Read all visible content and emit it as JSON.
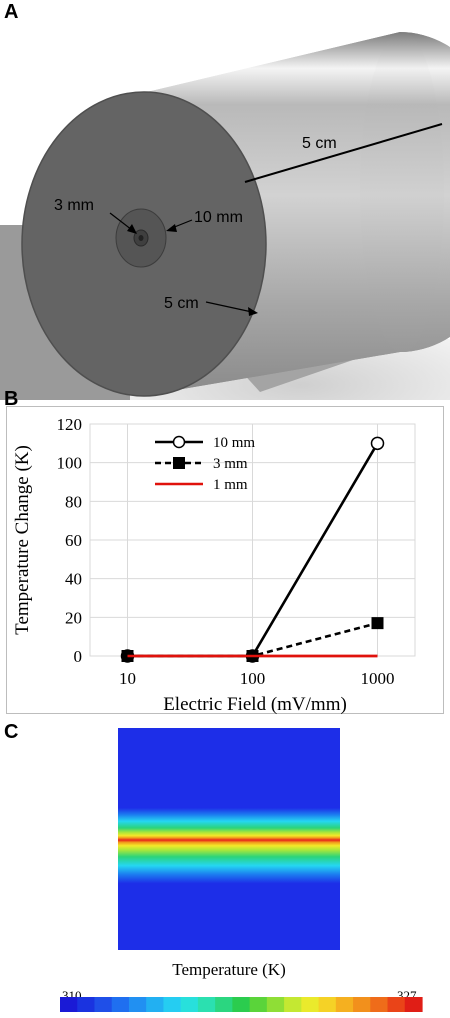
{
  "panels": {
    "a": {
      "letter": "A",
      "label_length": "5 cm",
      "label_diameter": "5 cm",
      "label_inner": "3 mm",
      "label_outer": "10 mm"
    },
    "b": {
      "letter": "B"
    },
    "c": {
      "letter": "C",
      "colorbar_title": "Temperature (K)",
      "colorbar_min": "310",
      "colorbar_max": "327"
    }
  },
  "chart_data": [
    {
      "type": "line",
      "xlabel": "Electric Field (mV/mm)",
      "ylabel": "Temperature Change (K)",
      "x_scale": "log",
      "x": [
        10,
        100,
        1000
      ],
      "x_ticks": [
        "10",
        "100",
        "1000"
      ],
      "ylim": [
        0,
        120
      ],
      "y_ticks": [
        0,
        20,
        40,
        60,
        80,
        100,
        120
      ],
      "grid": true,
      "legend_position": "top-center",
      "series": [
        {
          "name": "10 mm",
          "values": [
            0,
            0,
            110
          ],
          "color": "#000000",
          "dash": "solid",
          "marker": "open-circle"
        },
        {
          "name": "3 mm",
          "values": [
            0,
            0,
            17
          ],
          "color": "#000000",
          "dash": "dashed",
          "marker": "filled-square"
        },
        {
          "name": "1 mm",
          "values": [
            0,
            0,
            0
          ],
          "color": "#e0120c",
          "dash": "solid",
          "marker": "none"
        }
      ]
    },
    {
      "type": "heatmap",
      "colorbar_label": "Temperature (K)",
      "vmin": 310,
      "vmax": 327,
      "profile": "horizontal hot band at vertical center",
      "colors": [
        "#1f2fe6",
        "#1c7cf0",
        "#25d6f2",
        "#2bd47a",
        "#a9e63b",
        "#f5e829",
        "#f29a1c",
        "#e8231c"
      ]
    }
  ]
}
